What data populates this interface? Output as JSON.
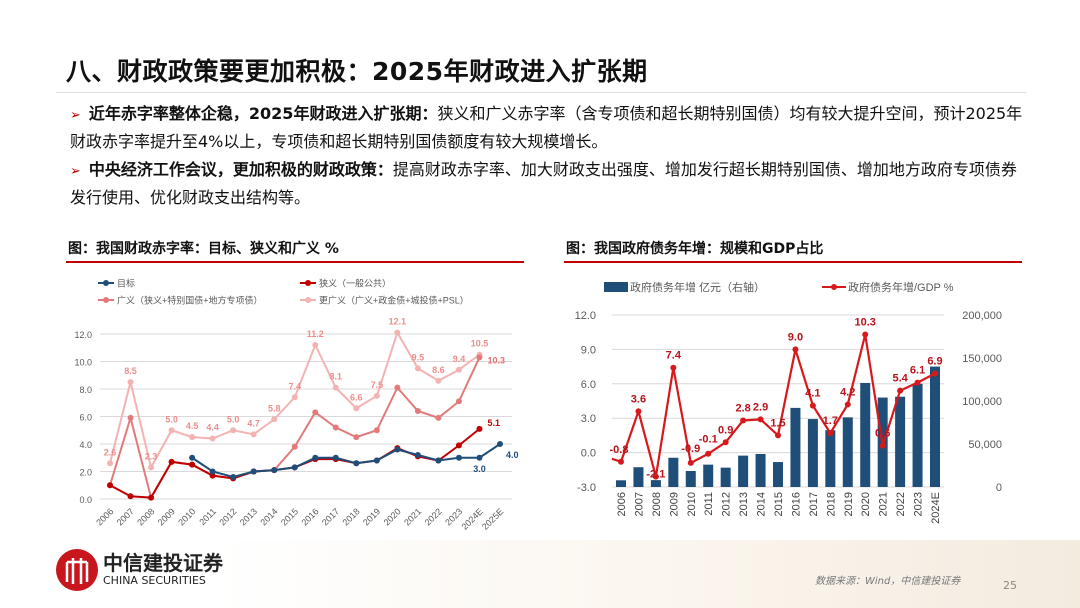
{
  "title": "八、财政政策要更加积极：2025年财政进入扩张期",
  "bullets": [
    {
      "bold": "近年赤字率整体企稳，2025年财政进入扩张期：",
      "text": "狭义和广义赤字率（含专项债和超长期特别国债）均有较大提升空间，预计2025年财政赤字率提升至4%以上，专项债和超长期特别国债额度有较大规模增长。"
    },
    {
      "bold": "中央经济工作会议，更加积极的财政政策：",
      "text": "提高财政赤字率、加大财政支出强度、增加发行超长期特别国债、增加地方政府专项债券发行使用、优化财政支出结构等。"
    }
  ],
  "footer": {
    "logo_cn": "中信建投证券",
    "logo_en": "CHINA SECURITIES",
    "source": "数据来源：Wind，中信建投证券",
    "page": "25"
  },
  "chart_data": [
    {
      "type": "line",
      "title": "图：我国财政赤字率：目标、狭义和广义 %",
      "categories": [
        "2006",
        "2007",
        "2008",
        "2009",
        "2010",
        "2011",
        "2012",
        "2013",
        "2014",
        "2015",
        "2016",
        "2017",
        "2018",
        "2019",
        "2020",
        "2021",
        "2022",
        "2023",
        "2024E",
        "2025E"
      ],
      "ylim": [
        0,
        12
      ],
      "yticks": [
        "0.0",
        "2.0",
        "4.0",
        "6.0",
        "8.0",
        "10.0",
        "12.0"
      ],
      "grid": true,
      "legend": "top",
      "series": [
        {
          "name": "目标",
          "color": "#1f4e79",
          "values": [
            null,
            null,
            null,
            null,
            3.0,
            2.0,
            1.6,
            2.0,
            2.1,
            2.3,
            3.0,
            3.0,
            2.6,
            2.8,
            3.6,
            3.2,
            2.8,
            3.0,
            3.0,
            4.0
          ],
          "labels": [
            null,
            null,
            null,
            null,
            null,
            null,
            null,
            null,
            null,
            null,
            null,
            null,
            null,
            null,
            null,
            null,
            null,
            null,
            "3.0",
            "4.0"
          ]
        },
        {
          "name": "狭义（一般公共）",
          "color": "#c00000",
          "values": [
            1.0,
            0.2,
            0.1,
            2.7,
            2.5,
            1.7,
            1.5,
            2.0,
            2.1,
            2.3,
            2.9,
            2.9,
            2.6,
            2.8,
            3.7,
            3.1,
            2.8,
            3.9,
            5.1,
            null
          ],
          "labels": [
            null,
            null,
            null,
            null,
            null,
            null,
            null,
            null,
            null,
            null,
            null,
            null,
            null,
            null,
            null,
            null,
            null,
            null,
            "5.1",
            null
          ]
        },
        {
          "name": "广义（狭义+特别国债+地方专项债）",
          "color": "#e27a7a",
          "values": [
            1.0,
            5.9,
            0.1,
            2.7,
            2.5,
            1.7,
            1.5,
            2.0,
            2.1,
            3.8,
            6.3,
            5.2,
            4.5,
            5.0,
            8.1,
            6.4,
            5.9,
            7.1,
            10.3,
            null
          ],
          "labels": [
            null,
            null,
            null,
            null,
            null,
            null,
            null,
            null,
            null,
            null,
            null,
            null,
            null,
            null,
            null,
            null,
            null,
            null,
            "10.3",
            null
          ]
        },
        {
          "name": "更广义（广义+政金债+城投债+PSL）",
          "color": "#f4b3b3",
          "values": [
            2.6,
            8.5,
            2.3,
            5.0,
            4.5,
            4.4,
            5.0,
            4.7,
            5.8,
            7.4,
            11.2,
            8.1,
            6.6,
            7.5,
            12.1,
            9.5,
            8.6,
            9.4,
            10.5,
            null
          ],
          "labels": [
            "2.6",
            "8.5",
            "2.3",
            "5.0",
            "4.5",
            "4.4",
            "5.0",
            "4.7",
            "5.8",
            "7.4",
            "11.2",
            "8.1",
            "6.6",
            "7.5",
            "12.1",
            "9.5",
            "8.6",
            "9.4",
            "10.5",
            null
          ]
        }
      ]
    },
    {
      "type": "bar+line",
      "title": "图：我国政府债务年增：规模和GDP占比",
      "categories": [
        "2006",
        "2007",
        "2008",
        "2009",
        "2010",
        "2011",
        "2012",
        "2013",
        "2014",
        "2015",
        "2016",
        "2017",
        "2018",
        "2019",
        "2020",
        "2021",
        "2022",
        "2023",
        "2024E"
      ],
      "ylim_left": [
        -3,
        12
      ],
      "yticks_left": [
        "-3.0",
        "0.0",
        "3.0",
        "6.0",
        "9.0",
        "12.0"
      ],
      "ylim_right": [
        0,
        200000
      ],
      "yticks_right": [
        "0",
        "50,000",
        "100,000",
        "150,000",
        "200,000"
      ],
      "grid": true,
      "legend": "top",
      "bar_series": {
        "name": "政府债务年增 亿元（右轴）",
        "color": "#1f4e79",
        "values": [
          7800,
          23000,
          8000,
          34000,
          18600,
          26000,
          22500,
          36500,
          38400,
          29000,
          92000,
          79000,
          66000,
          81000,
          121000,
          104000,
          105000,
          120000,
          140000
        ]
      },
      "line_series": {
        "name": "政府债务年增/GDP %",
        "color": "#d7191c",
        "values": [
          -0.8,
          3.6,
          -2.1,
          7.4,
          -0.9,
          -0.1,
          0.9,
          2.8,
          2.9,
          1.5,
          9.0,
          4.1,
          1.7,
          4.2,
          10.3,
          0.6,
          5.4,
          6.1,
          6.9
        ],
        "labels": [
          "-0.8",
          "3.6",
          "-2.1",
          "7.4",
          "-0.9",
          "-0.1",
          "0.9",
          "2.8",
          "2.9",
          "1.5",
          "9.0",
          "4.1",
          "1.7",
          "4.2",
          "10.3",
          "0.6",
          "5.4",
          "6.1",
          "6.9"
        ]
      }
    }
  ]
}
